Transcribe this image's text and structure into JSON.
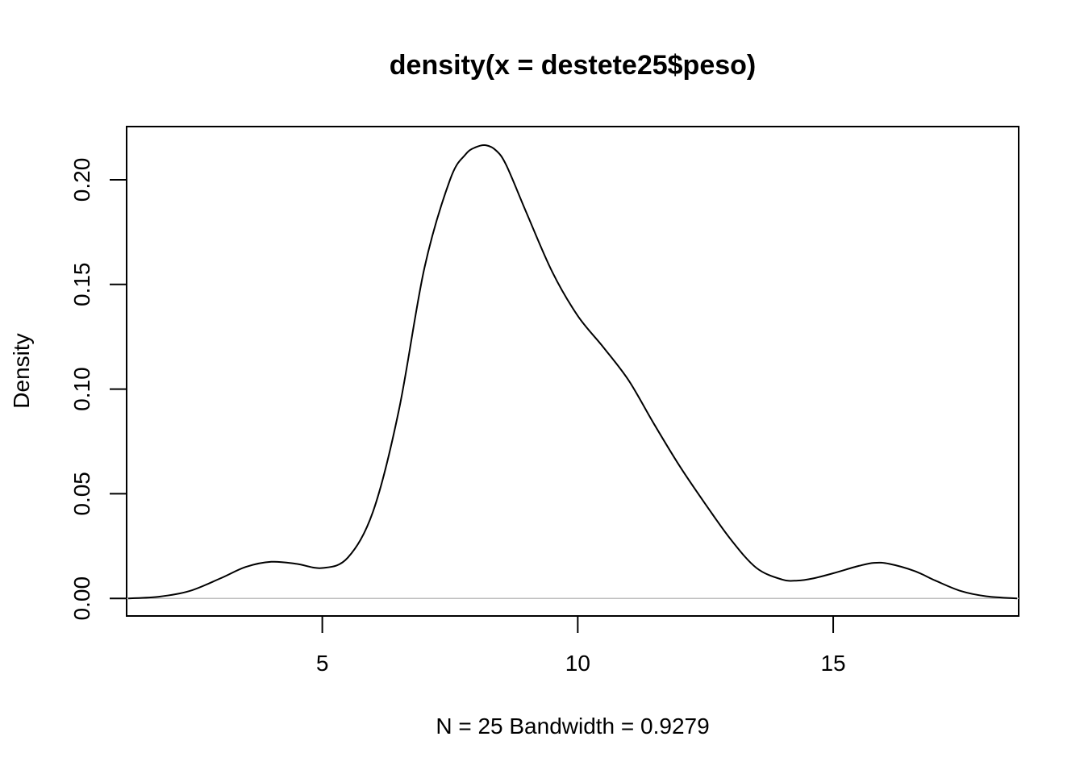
{
  "chart_data": {
    "type": "line",
    "title": "density(x = destete25$peso)",
    "xlabel": "N = 25   Bandwidth = 0.9279",
    "ylabel": "Density",
    "xlim": [
      1.17,
      18.63
    ],
    "ylim": [
      -0.0084,
      0.2254
    ],
    "x_ticks": [
      5,
      10,
      15
    ],
    "x_tick_labels": [
      "5",
      "10",
      "15"
    ],
    "y_ticks": [
      0,
      0.05,
      0.1,
      0.15,
      0.2
    ],
    "y_tick_labels": [
      "0.00",
      "0.05",
      "0.10",
      "0.15",
      "0.20"
    ],
    "baseline": 0,
    "series": [
      {
        "x": [
          1.2,
          1.8,
          2.4,
          3.0,
          3.5,
          4.0,
          4.5,
          5.0,
          5.5,
          6.0,
          6.5,
          7.0,
          7.5,
          7.8,
          8.0,
          8.2,
          8.4,
          8.6,
          9.0,
          9.5,
          10.0,
          10.5,
          11.0,
          11.5,
          12.0,
          12.5,
          13.0,
          13.5,
          14.0,
          14.3,
          14.6,
          15.0,
          15.5,
          15.8,
          16.1,
          16.6,
          17.0,
          17.5,
          18.0,
          18.6
        ],
        "y": [
          0.0,
          0.0008,
          0.0035,
          0.0095,
          0.015,
          0.0175,
          0.0165,
          0.0145,
          0.0195,
          0.042,
          0.09,
          0.158,
          0.2,
          0.212,
          0.2155,
          0.2165,
          0.214,
          0.207,
          0.184,
          0.156,
          0.135,
          0.12,
          0.104,
          0.083,
          0.063,
          0.045,
          0.028,
          0.0145,
          0.009,
          0.0085,
          0.0095,
          0.012,
          0.0155,
          0.017,
          0.0165,
          0.013,
          0.0085,
          0.0035,
          0.001,
          0.0
        ]
      }
    ],
    "grid": false,
    "legend": "none",
    "colors": {
      "line": "#000000",
      "baseline": "#bebebe",
      "frame": "#000000"
    }
  }
}
